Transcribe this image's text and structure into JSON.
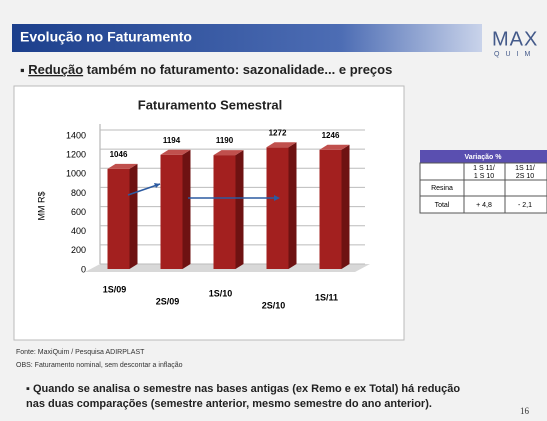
{
  "header": {
    "title": "Evolução no Faturamento",
    "logo_top": "MAX",
    "logo_bottom": "QUIM"
  },
  "bullet": {
    "underlined": "Redução",
    "rest": " também no faturamento: sazonalidade... e preços"
  },
  "chart_data": {
    "type": "bar",
    "title": "Faturamento Semestral",
    "y_label": "MM R$",
    "categories": [
      "1S/09",
      "2S/09",
      "1S/10",
      "2S/10",
      "1S/11"
    ],
    "values": [
      1046,
      1194,
      1190,
      1272,
      1246
    ],
    "color": "#a3201f",
    "ylim": [
      0,
      1400
    ],
    "yticks": [
      0,
      200,
      400,
      600,
      800,
      1000,
      1200,
      1400
    ],
    "grid": true
  },
  "table": {
    "title": "Variação %",
    "columns": [
      [
        "1 S 11/",
        "1 S 10"
      ],
      [
        "1S 11/",
        "2S 10"
      ]
    ],
    "rows": [
      {
        "label": "Resina",
        "cells": []
      },
      {
        "label": "Total",
        "cells": [
          "+ 4,8",
          "- 2,1"
        ]
      }
    ]
  },
  "source": "Fonte: MaxiQuim / Pesquisa ADIRPLAST",
  "obs": "OBS: Faturamento nominal, sem descontar a inflação",
  "note": [
    "Quando se analisa o semestre nas bases antigas (ex Remo e ex Total) há redução",
    "nas duas comparações (semestre anterior, mesmo semestre do ano anterior)."
  ],
  "page_number": "16"
}
